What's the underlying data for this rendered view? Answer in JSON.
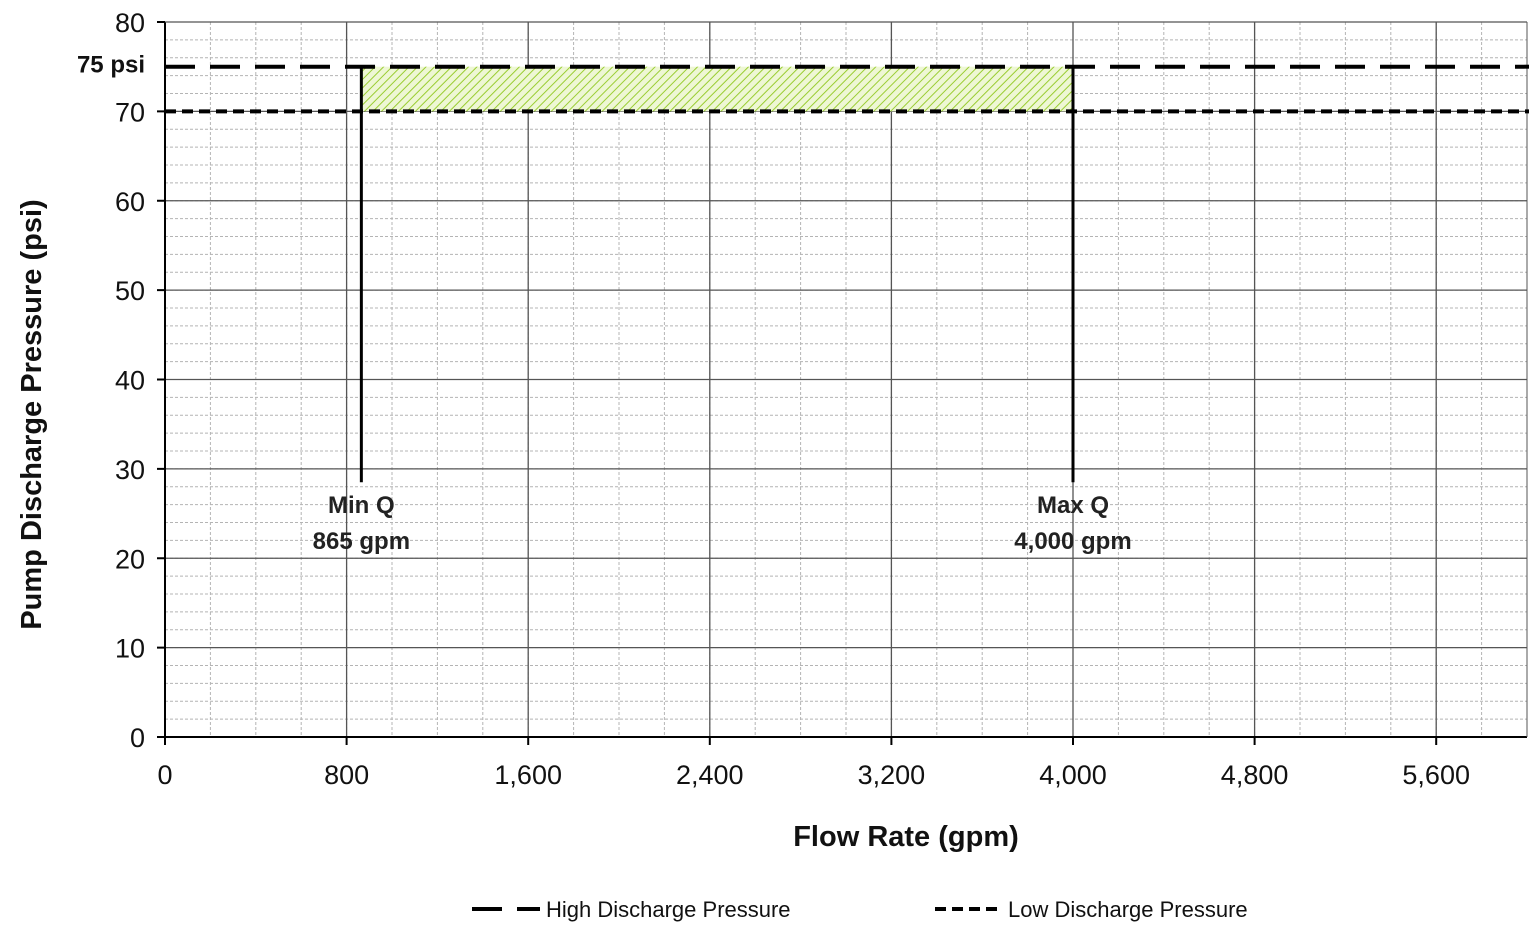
{
  "chart_data": {
    "type": "line",
    "title": "",
    "xlabel": "Flow Rate (gpm)",
    "ylabel": "Pump Discharge Pressure (psi)",
    "xlim": [
      0,
      6000
    ],
    "ylim": [
      0,
      80
    ],
    "x_ticks": [
      0,
      800,
      1600,
      2400,
      3200,
      4000,
      4800,
      5600
    ],
    "x_tick_labels": [
      "0",
      "800",
      "1,600",
      "2,400",
      "3,200",
      "4,000",
      "4,800",
      "5,600"
    ],
    "y_ticks": [
      0,
      10,
      20,
      30,
      40,
      50,
      60,
      70,
      80
    ],
    "y_tick_labels": [
      "0",
      "10",
      "20",
      "30",
      "40",
      "50",
      "60",
      "70",
      "80"
    ],
    "grid": true,
    "series": [
      {
        "name": "High Discharge Pressure",
        "style": "long-dash",
        "color": "#000000",
        "x": [
          0,
          6000
        ],
        "y": [
          75,
          75
        ]
      },
      {
        "name": "Low Discharge Pressure",
        "style": "short-dash",
        "color": "#000000",
        "x": [
          0,
          6000
        ],
        "y": [
          70,
          70
        ]
      }
    ],
    "vertical_lines": [
      {
        "x": 865,
        "y_from": 28.5,
        "y_to": 75,
        "label_line1": "Min Q",
        "label_line2": "865 gpm"
      },
      {
        "x": 4000,
        "y_from": 28.5,
        "y_to": 75,
        "label_line1": "Max Q",
        "label_line2": "4,000 gpm"
      }
    ],
    "shaded_region": {
      "x": [
        865,
        4000
      ],
      "y": [
        70,
        75
      ],
      "color": "#9acd32",
      "pattern": "hatched"
    },
    "annotations": [
      {
        "text": "75 psi",
        "y": 75
      }
    ],
    "legend_position": "bottom"
  }
}
